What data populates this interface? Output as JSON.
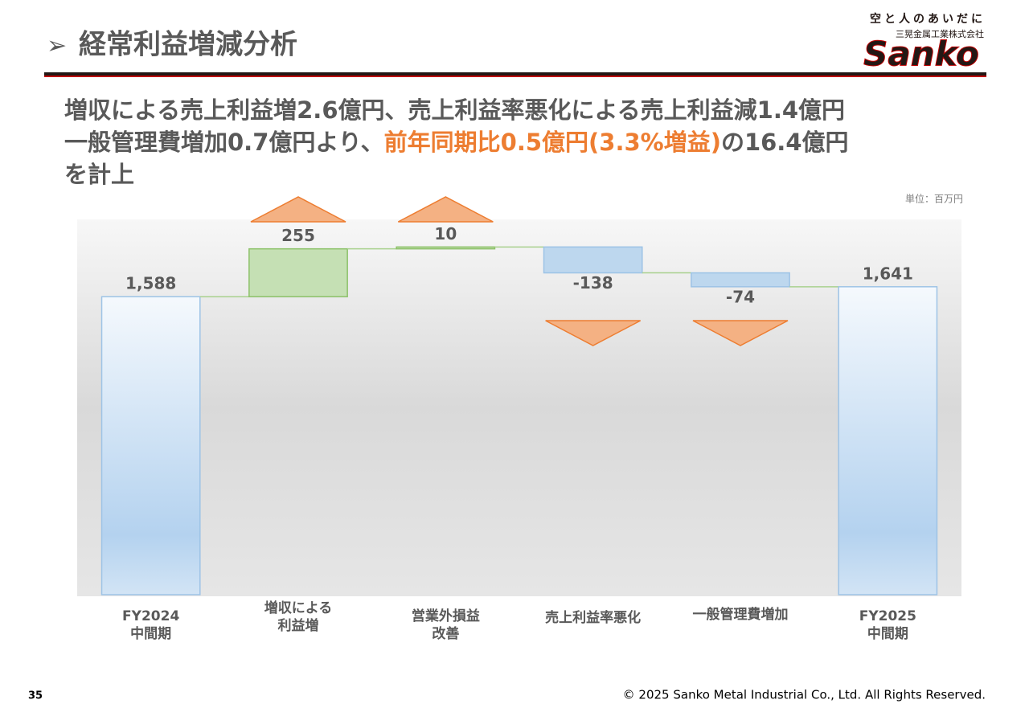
{
  "header": {
    "title": "経常利益増減分析",
    "tagline": "空と人のあいだに",
    "company": "三晃金属工業株式会社",
    "logo": "Sanko"
  },
  "summary": {
    "line1": "増収による売上利益増2.6億円、売上利益率悪化による売上利益減1.4億円",
    "line2_start": "一般管理費増加0.7億円より、",
    "line2_highlight": "前年同期比0.5億円(3.3%増益)",
    "line2_end": "の16.4億円",
    "line3": "を計上"
  },
  "chart_data": {
    "type": "waterfall",
    "unit": "単位：百万円",
    "categories": [
      "FY2024\n中間期",
      "増収による\n利益増",
      "営業外損益\n改善",
      "売上利益率悪化",
      "一般管理費増加",
      "FY2025\n中間期"
    ],
    "values": [
      1588,
      255,
      10,
      -138,
      -74,
      1641
    ],
    "value_labels": [
      "1,588",
      "255",
      "10",
      "-138",
      "-74",
      "1,641"
    ],
    "ylim": [
      0,
      2000
    ]
  },
  "footer": {
    "page": "35",
    "copyright": "© 2025 Sanko Metal Industrial Co., Ltd. All Rights Reserved."
  }
}
